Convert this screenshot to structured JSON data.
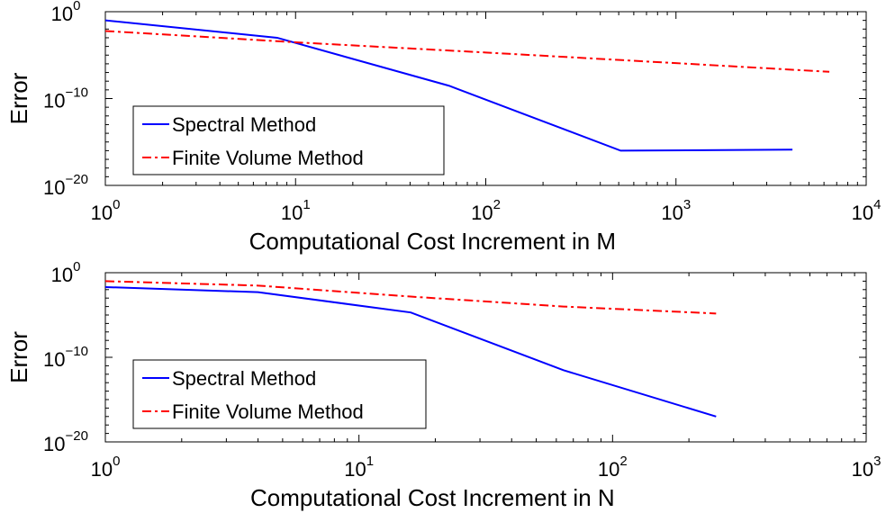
{
  "chart_data": [
    {
      "type": "line",
      "xscale": "log",
      "yscale": "log",
      "xlim": [
        1,
        10000
      ],
      "ylim": [
        1e-20,
        1
      ],
      "xticks": [
        1,
        10,
        100,
        1000,
        10000
      ],
      "xtick_labels": [
        {
          "base": "10",
          "exp": "0"
        },
        {
          "base": "10",
          "exp": "1"
        },
        {
          "base": "10",
          "exp": "2"
        },
        {
          "base": "10",
          "exp": "3"
        },
        {
          "base": "10",
          "exp": "4"
        }
      ],
      "yticks": [
        1e-20,
        1e-10,
        1
      ],
      "ytick_labels": [
        {
          "base": "10",
          "exp": "−20"
        },
        {
          "base": "10",
          "exp": "−10"
        },
        {
          "base": "10",
          "exp": "0"
        }
      ],
      "xlabel": "Computational Cost Increment in M",
      "ylabel": "Error",
      "legend": "lower-left",
      "grid": false,
      "series": [
        {
          "name": "Spectral Method",
          "color": "#0000ff",
          "style": "solid",
          "x": [
            1,
            8,
            64,
            512,
            4096
          ],
          "y": [
            0.1,
            0.001,
            3e-09,
            1e-16,
            1.3e-16
          ]
        },
        {
          "name": "Finite Volume Method",
          "color": "#ff0000",
          "style": "dashdot",
          "x": [
            1,
            10,
            100,
            1000,
            6400
          ],
          "y": [
            0.006,
            0.0003,
            2e-05,
            1.2e-06,
            1.2e-07
          ]
        }
      ]
    },
    {
      "type": "line",
      "xscale": "log",
      "yscale": "log",
      "xlim": [
        1,
        1000
      ],
      "ylim": [
        1e-20,
        1
      ],
      "xticks": [
        1,
        10,
        100,
        1000
      ],
      "xtick_labels": [
        {
          "base": "10",
          "exp": "0"
        },
        {
          "base": "10",
          "exp": "1"
        },
        {
          "base": "10",
          "exp": "2"
        },
        {
          "base": "10",
          "exp": "3"
        }
      ],
      "yticks": [
        1e-20,
        1e-10,
        1
      ],
      "ytick_labels": [
        {
          "base": "10",
          "exp": "−20"
        },
        {
          "base": "10",
          "exp": "−10"
        },
        {
          "base": "10",
          "exp": "0"
        }
      ],
      "xlabel": "Computational Cost Increment in N",
      "ylabel": "Error",
      "legend": "lower-left",
      "grid": false,
      "series": [
        {
          "name": "Spectral Method",
          "color": "#0000ff",
          "style": "solid",
          "x": [
            1,
            4,
            16,
            64,
            256
          ],
          "y": [
            0.02,
            0.005,
            2e-05,
            3e-12,
            1e-17
          ]
        },
        {
          "name": "Finite Volume Method",
          "color": "#ff0000",
          "style": "dashdot",
          "x": [
            1,
            4,
            16,
            64,
            256
          ],
          "y": [
            0.1,
            0.03,
            0.0015,
            0.0001,
            1.5e-05
          ]
        }
      ]
    }
  ]
}
